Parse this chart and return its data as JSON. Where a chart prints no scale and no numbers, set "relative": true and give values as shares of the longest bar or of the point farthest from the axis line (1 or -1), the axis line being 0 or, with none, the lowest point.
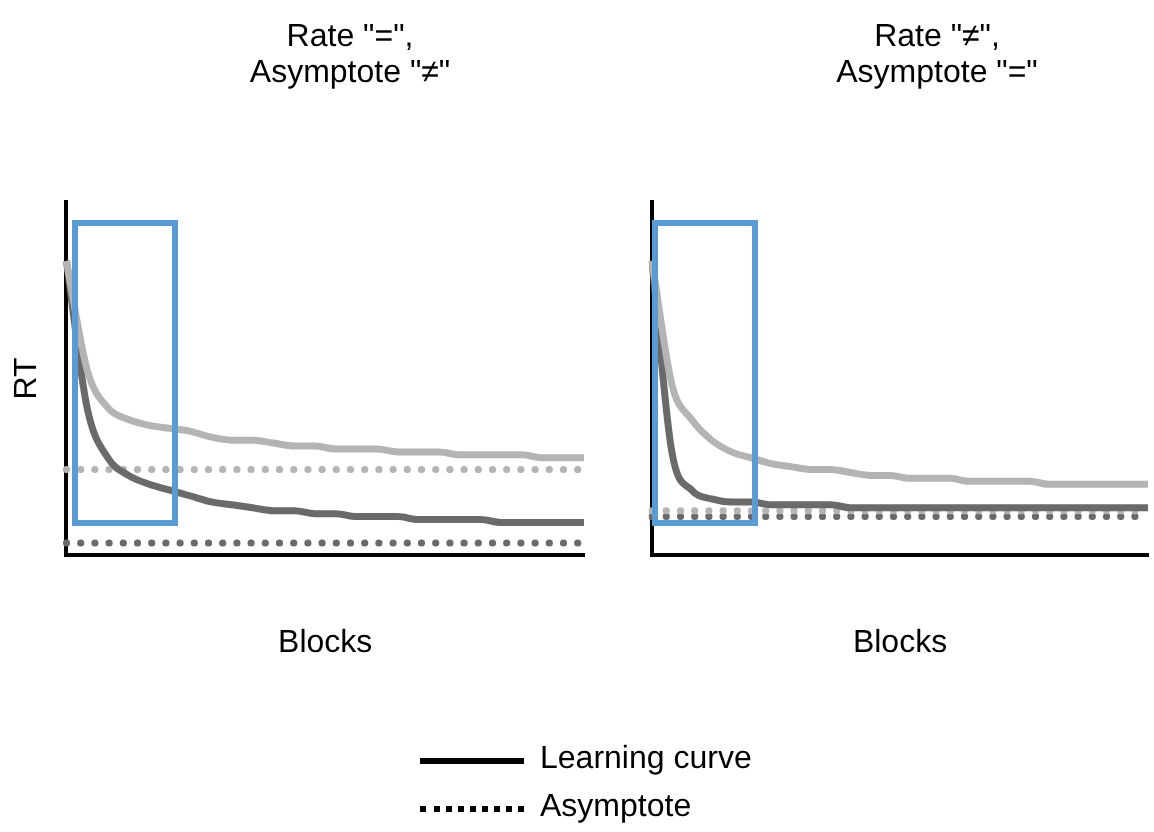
{
  "chart_data": [
    {
      "type": "line",
      "title": "Rate \"=\", Asymptote \"≠\"",
      "xlabel": "Blocks",
      "ylabel": "RT",
      "relative": true,
      "legend": false,
      "categories": [
        null,
        null,
        null,
        null,
        null,
        null,
        null,
        null,
        null,
        null,
        null,
        null,
        null,
        null,
        null,
        null,
        null,
        null,
        null,
        null,
        null,
        null,
        null,
        null,
        null,
        null
      ],
      "series": [
        {
          "color": "#b4b4b4",
          "line_style": "solid",
          "values": [
            1,
            0.63,
            0.5,
            0.46,
            0.44,
            0.43,
            0.42,
            0.4,
            0.39,
            0.39,
            0.38,
            0.37,
            0.37,
            0.36,
            0.36,
            0.36,
            0.35,
            0.35,
            0.35,
            0.34,
            0.34,
            0.34,
            0.34,
            0.33,
            0.33,
            0.33
          ]
        },
        {
          "color": "#6a6a6a",
          "line_style": "solid",
          "values": [
            1,
            0.5,
            0.33,
            0.27,
            0.24,
            0.22,
            0.2,
            0.18,
            0.17,
            0.16,
            0.15,
            0.15,
            0.14,
            0.14,
            0.13,
            0.13,
            0.13,
            0.12,
            0.12,
            0.12,
            0.12,
            0.11,
            0.11,
            0.11,
            0.11,
            0.11
          ]
        },
        {
          "color": "#b4b4b4",
          "line_style": "dotted",
          "values": [
            0.29,
            0.29,
            0.29,
            0.29,
            0.29,
            0.29,
            0.29,
            0.29,
            0.29,
            0.29,
            0.29,
            0.29,
            0.29,
            0.29,
            0.29,
            0.29,
            0.29,
            0.29,
            0.29,
            0.29,
            0.29,
            0.29,
            0.29,
            0.29,
            0.29,
            0.29
          ]
        },
        {
          "color": "#6a6a6a",
          "line_style": "dotted",
          "values": [
            0.04,
            0.04,
            0.04,
            0.04,
            0.04,
            0.04,
            0.04,
            0.04,
            0.04,
            0.04,
            0.04,
            0.04,
            0.04,
            0.04,
            0.04,
            0.04,
            0.04,
            0.04,
            0.04,
            0.04,
            0.04,
            0.04,
            0.04,
            0.04,
            0.04,
            0.04
          ]
        }
      ]
    },
    {
      "type": "line",
      "title": "Rate \"≠\", Asymptote \"=\"",
      "xlabel": "Blocks",
      "relative": true,
      "legend": false,
      "categories": [
        null,
        null,
        null,
        null,
        null,
        null,
        null,
        null,
        null,
        null,
        null,
        null,
        null,
        null,
        null,
        null,
        null,
        null,
        null,
        null,
        null,
        null,
        null,
        null,
        null,
        null
      ],
      "series": [
        {
          "color": "#b4b4b4",
          "line_style": "solid",
          "values": [
            1,
            0.58,
            0.46,
            0.39,
            0.35,
            0.33,
            0.31,
            0.3,
            0.29,
            0.29,
            0.28,
            0.27,
            0.27,
            0.26,
            0.26,
            0.26,
            0.25,
            0.25,
            0.25,
            0.25,
            0.24,
            0.24,
            0.24,
            0.24,
            0.24,
            0.24
          ]
        },
        {
          "color": "#6a6a6a",
          "line_style": "solid",
          "values": [
            1,
            0.35,
            0.22,
            0.19,
            0.18,
            0.18,
            0.17,
            0.17,
            0.17,
            0.17,
            0.16,
            0.16,
            0.16,
            0.16,
            0.16,
            0.16,
            0.16,
            0.16,
            0.16,
            0.16,
            0.16,
            0.16,
            0.16,
            0.16,
            0.16,
            0.16
          ]
        },
        {
          "color": "#b4b4b4",
          "line_style": "dotted",
          "values": [
            0.15,
            0.15,
            0.15,
            0.15,
            0.15,
            0.15,
            0.15,
            0.15,
            0.15,
            0.15,
            0.15,
            0.15,
            0.15,
            0.15,
            0.15,
            0.15,
            0.15,
            0.15,
            0.15,
            0.15,
            0.15,
            0.15,
            0.15,
            0.15,
            0.15,
            0.15
          ]
        },
        {
          "color": "#6a6a6a",
          "line_style": "dotted",
          "values": [
            0.13,
            0.13,
            0.13,
            0.13,
            0.13,
            0.13,
            0.13,
            0.13,
            0.13,
            0.13,
            0.13,
            0.13,
            0.13,
            0.13,
            0.13,
            0.13,
            0.13,
            0.13,
            0.13,
            0.13,
            0.13,
            0.13,
            0.13,
            0.13,
            0.13,
            0.13
          ]
        }
      ]
    },
    {
      "type": "other",
      "annotations": [
        "Learning curve",
        "Asymptote"
      ]
    }
  ]
}
